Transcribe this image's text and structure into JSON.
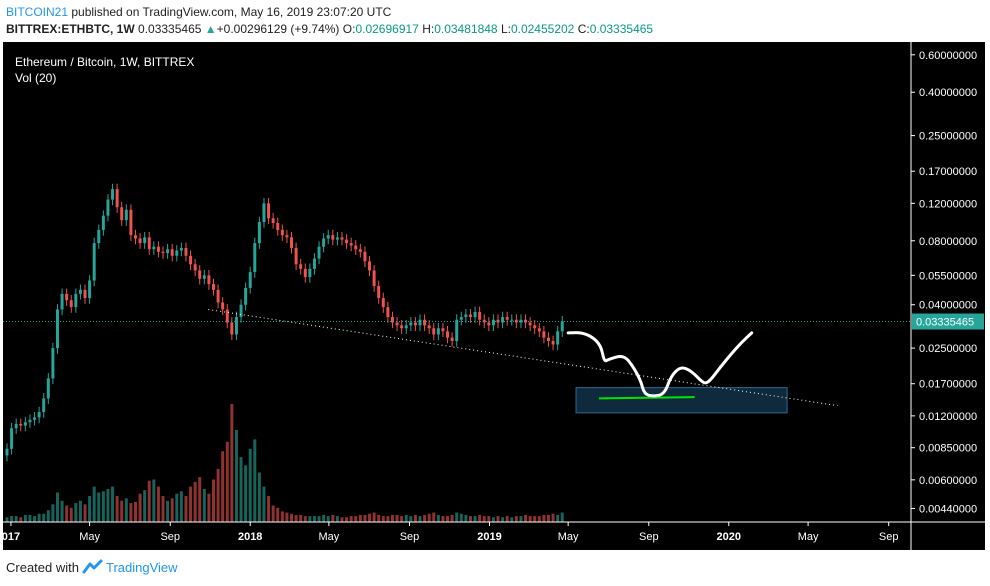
{
  "header": {
    "publisher": "BITCOIN21",
    "published_text": " published on TradingView.com, May 16, 2019 23:07:20 UTC",
    "symbol": "BITTREX:ETHBTC, 1W",
    "last": "0.03335465",
    "arrow": "▲",
    "change": "+0.00296129 (+9.74%)",
    "o_label": "O:",
    "o": "0.02696917",
    "h_label": "H:",
    "h": "0.03481848",
    "l_label": "L:",
    "l": "0.02455202",
    "c_label": "C:",
    "c": "0.03335465"
  },
  "legend": {
    "title": "Ethereum / Bitcoin, 1W, BITTREX",
    "volume": "Vol (20)"
  },
  "footer": {
    "created_with": "Created with",
    "brand": "TradingView"
  },
  "colors": {
    "up": "#26a69a",
    "down": "#ef5350",
    "background": "#000000",
    "axis_text": "#ffffff",
    "last_price_tag": "#26a69a",
    "publisher": "#2196f3",
    "box_fill": "#0f2a3c",
    "box_stroke": "#2a6a8f",
    "green_line": "#00e600"
  },
  "chart_data": {
    "type": "candlestick",
    "title": "Ethereum / Bitcoin, 1W, BITTREX",
    "y_scale": "log",
    "ylim": [
      0.0038,
      0.66
    ],
    "y_ticks": [
      "0.60000000",
      "0.40000000",
      "0.25000000",
      "0.17000000",
      "0.12000000",
      "0.08000000",
      "0.05500000",
      "0.04000000",
      "0.02500000",
      "0.01700000",
      "0.01200000",
      "0.00850000",
      "0.00600000",
      "0.00440000"
    ],
    "last_price": "0.03335465",
    "x_range": [
      "2016-12-26",
      "2020-10-05"
    ],
    "x_ticks": [
      {
        "label": "017",
        "date": "2017-01-01"
      },
      {
        "label": "May",
        "date": "2017-05-01"
      },
      {
        "label": "Sep",
        "date": "2017-09-01"
      },
      {
        "label": "2018",
        "date": "2018-01-01"
      },
      {
        "label": "May",
        "date": "2018-05-01"
      },
      {
        "label": "Sep",
        "date": "2018-09-01"
      },
      {
        "label": "2019",
        "date": "2019-01-01"
      },
      {
        "label": "May",
        "date": "2019-05-01"
      },
      {
        "label": "Sep",
        "date": "2019-09-01"
      },
      {
        "label": "2020",
        "date": "2020-01-01"
      },
      {
        "label": "May",
        "date": "2020-05-01"
      },
      {
        "label": "Sep",
        "date": "2020-09-01"
      }
    ],
    "first_week": "2016-12-26",
    "weekly_close": [
      0.0084,
      0.0105,
      0.011,
      0.0108,
      0.0112,
      0.0115,
      0.0118,
      0.0125,
      0.0145,
      0.018,
      0.025,
      0.038,
      0.045,
      0.042,
      0.039,
      0.045,
      0.047,
      0.043,
      0.052,
      0.078,
      0.09,
      0.105,
      0.125,
      0.14,
      0.115,
      0.1,
      0.112,
      0.085,
      0.082,
      0.078,
      0.083,
      0.073,
      0.075,
      0.071,
      0.07,
      0.073,
      0.068,
      0.072,
      0.074,
      0.068,
      0.062,
      0.058,
      0.053,
      0.055,
      0.05,
      0.047,
      0.041,
      0.038,
      0.033,
      0.029,
      0.035,
      0.04,
      0.048,
      0.057,
      0.078,
      0.098,
      0.12,
      0.102,
      0.097,
      0.09,
      0.085,
      0.083,
      0.074,
      0.062,
      0.059,
      0.054,
      0.059,
      0.066,
      0.075,
      0.082,
      0.085,
      0.081,
      0.083,
      0.081,
      0.078,
      0.076,
      0.073,
      0.071,
      0.064,
      0.058,
      0.049,
      0.043,
      0.039,
      0.035,
      0.033,
      0.032,
      0.031,
      0.032,
      0.033,
      0.032,
      0.034,
      0.032,
      0.031,
      0.029,
      0.031,
      0.03,
      0.028,
      0.027,
      0.034,
      0.035,
      0.036,
      0.035,
      0.037,
      0.034,
      0.033,
      0.032,
      0.034,
      0.033,
      0.035,
      0.034,
      0.034,
      0.033,
      0.034,
      0.033,
      0.032,
      0.031,
      0.03,
      0.028,
      0.027,
      0.026,
      0.03,
      0.0334
    ],
    "volume_relative": [
      0.04,
      0.05,
      0.05,
      0.04,
      0.06,
      0.06,
      0.05,
      0.07,
      0.07,
      0.1,
      0.15,
      0.25,
      0.18,
      0.14,
      0.12,
      0.16,
      0.18,
      0.15,
      0.22,
      0.3,
      0.25,
      0.26,
      0.28,
      0.3,
      0.22,
      0.18,
      0.2,
      0.16,
      0.17,
      0.24,
      0.27,
      0.35,
      0.36,
      0.3,
      0.22,
      0.18,
      0.2,
      0.24,
      0.26,
      0.22,
      0.3,
      0.34,
      0.38,
      0.28,
      0.24,
      0.36,
      0.45,
      0.6,
      0.68,
      1.0,
      0.78,
      0.55,
      0.48,
      0.62,
      0.7,
      0.42,
      0.3,
      0.22,
      0.14,
      0.12,
      0.09,
      0.08,
      0.07,
      0.06,
      0.06,
      0.05,
      0.05,
      0.05,
      0.05,
      0.06,
      0.05,
      0.06,
      0.05,
      0.04,
      0.04,
      0.05,
      0.05,
      0.06,
      0.06,
      0.07,
      0.08,
      0.06,
      0.05,
      0.05,
      0.06,
      0.06,
      0.05,
      0.06,
      0.05,
      0.06,
      0.05,
      0.06,
      0.07,
      0.08,
      0.06,
      0.05,
      0.05,
      0.06,
      0.08,
      0.07,
      0.06,
      0.05,
      0.05,
      0.06,
      0.05,
      0.05,
      0.04,
      0.05,
      0.04,
      0.05,
      0.04,
      0.05,
      0.05,
      0.06,
      0.05,
      0.05,
      0.05,
      0.06,
      0.06,
      0.07,
      0.06,
      0.08
    ],
    "annotations": [
      {
        "type": "trendline",
        "style": "dotted",
        "from": {
          "date": "2017-10-29",
          "value": 0.038
        },
        "to": {
          "date": "2020-06-15",
          "value": 0.0134
        }
      },
      {
        "type": "rectangle",
        "from": {
          "date": "2019-05-13",
          "value": 0.0163
        },
        "to": {
          "date": "2020-03-30",
          "value": 0.0124
        }
      },
      {
        "type": "hline",
        "color": "green",
        "from": {
          "date": "2019-06-17",
          "value": 0.0145
        },
        "to": {
          "date": "2019-11-10",
          "value": 0.0147
        }
      },
      {
        "type": "freehand",
        "color": "white",
        "points": [
          {
            "date": "2019-05-01",
            "value": 0.0295
          },
          {
            "date": "2019-05-20",
            "value": 0.0296
          },
          {
            "date": "2019-06-05",
            "value": 0.0285
          },
          {
            "date": "2019-06-20",
            "value": 0.0258
          },
          {
            "date": "2019-06-25",
            "value": 0.0215
          },
          {
            "date": "2019-07-02",
            "value": 0.0222
          },
          {
            "date": "2019-07-25",
            "value": 0.0232
          },
          {
            "date": "2019-08-08",
            "value": 0.0205
          },
          {
            "date": "2019-08-20",
            "value": 0.0175
          },
          {
            "date": "2019-08-25",
            "value": 0.0152
          },
          {
            "date": "2019-09-08",
            "value": 0.0148
          },
          {
            "date": "2019-09-25",
            "value": 0.0152
          },
          {
            "date": "2019-10-05",
            "value": 0.0185
          },
          {
            "date": "2019-10-20",
            "value": 0.0205
          },
          {
            "date": "2019-11-05",
            "value": 0.0195
          },
          {
            "date": "2019-11-20",
            "value": 0.0175
          },
          {
            "date": "2019-11-27",
            "value": 0.017
          },
          {
            "date": "2019-12-05",
            "value": 0.0178
          },
          {
            "date": "2019-12-20",
            "value": 0.0205
          },
          {
            "date": "2020-01-05",
            "value": 0.0235
          },
          {
            "date": "2020-01-20",
            "value": 0.0265
          },
          {
            "date": "2020-02-05",
            "value": 0.0295
          }
        ]
      }
    ]
  }
}
